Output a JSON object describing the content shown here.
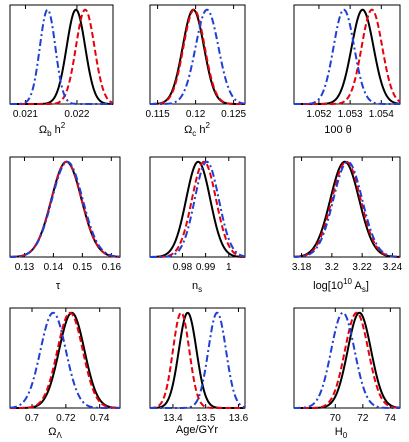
{
  "chart_data": [
    {
      "type": "line",
      "xlabel": "Ω_b h²",
      "xlim": [
        0.0207,
        0.0227
      ],
      "ylim": [
        0,
        1.05
      ],
      "xticks": [
        {
          "value": 0.021,
          "label": "0.021"
        },
        {
          "value": 0.022,
          "label": "0.022"
        }
      ],
      "series": [
        {
          "color": "#000000",
          "style": "solid",
          "mean": 0.02198,
          "sigma": 0.00018
        },
        {
          "color": "#e8000b",
          "style": "dashed",
          "mean": 0.02216,
          "sigma": 0.00018
        },
        {
          "color": "#1f3fd6",
          "style": "dashdot",
          "mean": 0.02143,
          "sigma": 0.00015
        }
      ]
    },
    {
      "type": "line",
      "xlabel": "Ω_c h²",
      "xlim": [
        0.114,
        0.1265
      ],
      "ylim": [
        0,
        1.05
      ],
      "xticks": [
        {
          "value": 0.115,
          "label": "0.115"
        },
        {
          "value": 0.12,
          "label": "0.12"
        },
        {
          "value": 0.125,
          "label": "0.125"
        }
      ],
      "series": [
        {
          "color": "#000000",
          "style": "solid",
          "mean": 0.1197,
          "sigma": 0.0014
        },
        {
          "color": "#e8000b",
          "style": "dashed",
          "mean": 0.1198,
          "sigma": 0.0014
        },
        {
          "color": "#1f3fd6",
          "style": "dashdot",
          "mean": 0.1215,
          "sigma": 0.0015
        }
      ]
    },
    {
      "type": "line",
      "xlabel": "100 θ",
      "xlim": [
        1.0512,
        1.0546
      ],
      "ylim": [
        0,
        1.05
      ],
      "xticks": [
        {
          "value": 1.052,
          "label": "1.052"
        },
        {
          "value": 1.053,
          "label": "1.053"
        },
        {
          "value": 1.054,
          "label": "1.054"
        }
      ],
      "series": [
        {
          "color": "#000000",
          "style": "solid",
          "mean": 1.0534,
          "sigma": 0.00035
        },
        {
          "color": "#e8000b",
          "style": "dashed",
          "mean": 1.0537,
          "sigma": 0.00033
        },
        {
          "color": "#1f3fd6",
          "style": "dashdot",
          "mean": 1.0528,
          "sigma": 0.00033
        }
      ]
    },
    {
      "type": "line",
      "xlabel": "τ",
      "xlim": [
        0.125,
        0.163
      ],
      "ylim": [
        0,
        1.05
      ],
      "xticks": [
        {
          "value": 0.13,
          "label": "0.13"
        },
        {
          "value": 0.14,
          "label": "0.14"
        },
        {
          "value": 0.15,
          "label": "0.15"
        },
        {
          "value": 0.16,
          "label": "0.16"
        }
      ],
      "series": [
        {
          "color": "#000000",
          "style": "solid",
          "mean": 0.1445,
          "sigma": 0.0052
        },
        {
          "color": "#e8000b",
          "style": "dashed",
          "mean": 0.1445,
          "sigma": 0.0052
        },
        {
          "color": "#1f3fd6",
          "style": "dashdot",
          "mean": 0.1448,
          "sigma": 0.0053
        }
      ]
    },
    {
      "type": "line",
      "xlabel": "n_s",
      "xlim": [
        0.966,
        1.007
      ],
      "ylim": [
        0,
        1.05
      ],
      "xticks": [
        {
          "value": 0.98,
          "label": "0.98"
        },
        {
          "value": 0.99,
          "label": "0.99"
        },
        {
          "value": 1.0,
          "label": "1"
        }
      ],
      "series": [
        {
          "color": "#000000",
          "style": "solid",
          "mean": 0.9868,
          "sigma": 0.0052
        },
        {
          "color": "#e8000b",
          "style": "dashed",
          "mean": 0.9893,
          "sigma": 0.0052
        },
        {
          "color": "#1f3fd6",
          "style": "dashdot",
          "mean": 0.9905,
          "sigma": 0.0052
        }
      ]
    },
    {
      "type": "line",
      "xlabel": "log[10¹⁰ A_s]",
      "xlim": [
        3.175,
        3.245
      ],
      "ylim": [
        0,
        1.05
      ],
      "xticks": [
        {
          "value": 3.18,
          "label": "3.18"
        },
        {
          "value": 3.2,
          "label": "3.2"
        },
        {
          "value": 3.22,
          "label": "3.22"
        },
        {
          "value": 3.24,
          "label": "3.24"
        }
      ],
      "series": [
        {
          "color": "#000000",
          "style": "solid",
          "mean": 3.2085,
          "sigma": 0.0095
        },
        {
          "color": "#e8000b",
          "style": "dashed",
          "mean": 3.2095,
          "sigma": 0.0095
        },
        {
          "color": "#1f3fd6",
          "style": "dashdot",
          "mean": 3.2105,
          "sigma": 0.0095
        }
      ]
    },
    {
      "type": "line",
      "xlabel": "Ω_Λ",
      "xlim": [
        0.687,
        0.752
      ],
      "ylim": [
        0,
        1.05
      ],
      "xticks": [
        {
          "value": 0.7,
          "label": "0.7"
        },
        {
          "value": 0.72,
          "label": "0.72"
        },
        {
          "value": 0.74,
          "label": "0.74"
        }
      ],
      "series": [
        {
          "color": "#000000",
          "style": "solid",
          "mean": 0.7235,
          "sigma": 0.0075
        },
        {
          "color": "#e8000b",
          "style": "dashed",
          "mean": 0.7225,
          "sigma": 0.0075
        },
        {
          "color": "#1f3fd6",
          "style": "dashdot",
          "mean": 0.7125,
          "sigma": 0.0075
        }
      ]
    },
    {
      "type": "line",
      "xlabel": "Age/GYr",
      "xlim": [
        13.33,
        13.62
      ],
      "ylim": [
        0,
        1.05
      ],
      "xticks": [
        {
          "value": 13.4,
          "label": "13.4"
        },
        {
          "value": 13.5,
          "label": "13.5"
        },
        {
          "value": 13.6,
          "label": "13.6"
        }
      ],
      "series": [
        {
          "color": "#000000",
          "style": "solid",
          "mean": 13.445,
          "sigma": 0.027
        },
        {
          "color": "#e8000b",
          "style": "dashed",
          "mean": 13.425,
          "sigma": 0.025
        },
        {
          "color": "#1f3fd6",
          "style": "dashdot",
          "mean": 13.535,
          "sigma": 0.027
        }
      ]
    },
    {
      "type": "line",
      "xlabel": "H_0",
      "xlim": [
        67.0,
        74.7
      ],
      "ylim": [
        0,
        1.05
      ],
      "xticks": [
        {
          "value": 70,
          "label": "70"
        },
        {
          "value": 72,
          "label": "72"
        },
        {
          "value": 74,
          "label": "74"
        }
      ],
      "series": [
        {
          "color": "#000000",
          "style": "solid",
          "mean": 71.75,
          "sigma": 0.85
        },
        {
          "color": "#e8000b",
          "style": "dashed",
          "mean": 71.55,
          "sigma": 0.85
        },
        {
          "color": "#1f3fd6",
          "style": "dashdot",
          "mean": 70.55,
          "sigma": 0.85
        }
      ]
    }
  ]
}
